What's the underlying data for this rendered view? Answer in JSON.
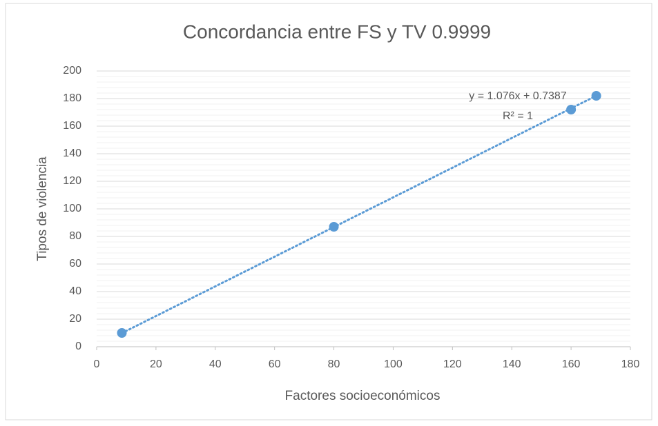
{
  "chart_data": {
    "type": "scatter",
    "title": "Concordancia entre FS y TV  0.9999",
    "x_label": "Factores socioeconómicos",
    "y_label": "Tipos de violencia",
    "x": [
      8.5,
      80,
      160,
      168.5
    ],
    "values": [
      10,
      87,
      172,
      182
    ],
    "color": "#5b9bd5",
    "xlim": [
      0,
      180
    ],
    "xticks": [
      0,
      20,
      40,
      60,
      80,
      100,
      120,
      140,
      160,
      180
    ],
    "ylim": [
      0,
      200
    ],
    "yticks": [
      0,
      20,
      40,
      60,
      80,
      100,
      120,
      140,
      160,
      180,
      200
    ],
    "grid": true,
    "minor_grid": true,
    "trendline": {
      "slope": 1.076,
      "intercept": 0.7387,
      "equation": "y = 1.076x + 0.7387",
      "r2": "R² = 1"
    }
  }
}
